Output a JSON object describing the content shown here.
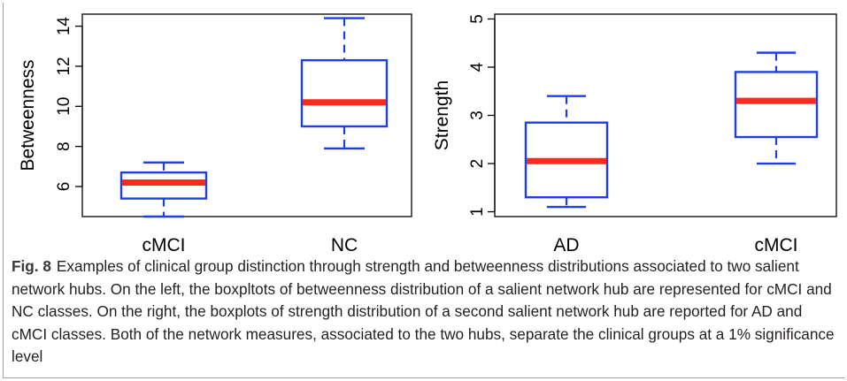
{
  "chart_data": [
    {
      "type": "boxplot",
      "ylabel": "Betweenness",
      "ylim": [
        4.5,
        14.6
      ],
      "yticks": [
        6,
        8,
        10,
        12,
        14
      ],
      "categories": [
        "cMCI",
        "NC"
      ],
      "boxes": [
        {
          "category": "cMCI",
          "whisker_low": 4.5,
          "q1": 5.4,
          "median": 6.2,
          "q3": 6.7,
          "whisker_high": 7.2
        },
        {
          "category": "NC",
          "whisker_low": 7.9,
          "q1": 9.0,
          "median": 10.2,
          "q3": 12.3,
          "whisker_high": 14.4
        }
      ],
      "colors": {
        "box": "#1f3fe0",
        "median": "#ff2a1f"
      }
    },
    {
      "type": "boxplot",
      "ylabel": "Strength",
      "ylim": [
        0.9,
        5.1
      ],
      "yticks": [
        1,
        2,
        3,
        4,
        5
      ],
      "categories": [
        "AD",
        "cMCI"
      ],
      "boxes": [
        {
          "category": "AD",
          "whisker_low": 1.1,
          "q1": 1.3,
          "median": 2.05,
          "q3": 2.85,
          "whisker_high": 3.4
        },
        {
          "category": "cMCI",
          "whisker_low": 2.0,
          "q1": 2.55,
          "median": 3.3,
          "q3": 3.9,
          "whisker_high": 4.3
        }
      ],
      "colors": {
        "box": "#1f3fe0",
        "median": "#ff2a1f"
      }
    }
  ],
  "caption": {
    "label": "Fig. 8",
    "text": "Examples of clinical group distinction through strength and betweenness distributions associated to two salient network hubs. On the left, the boxpltots of betweenness distribution of a salient network hub are represented for cMCI and NC classes. On the right, the boxplots of strength distribution of a second salient network hub are reported for AD and cMCI classes. Both of the network measures, associated to the two hubs, separate the clinical groups at a 1% significance level"
  }
}
